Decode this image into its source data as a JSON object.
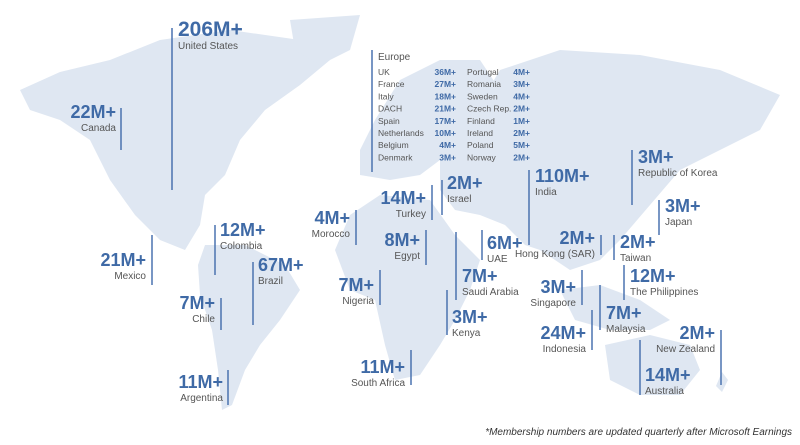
{
  "labels": [
    {
      "value": "206M+",
      "name": "United States"
    },
    {
      "value": "22M+",
      "name": "Canada"
    },
    {
      "value": "12M+",
      "name": "Colombia"
    },
    {
      "value": "21M+",
      "name": "Mexico"
    },
    {
      "value": "67M+",
      "name": "Brazil"
    },
    {
      "value": "7M+",
      "name": "Chile"
    },
    {
      "value": "11M+",
      "name": "Argentina"
    },
    {
      "value": "4M+",
      "name": "Morocco"
    },
    {
      "value": "7M+",
      "name": "Nigeria"
    },
    {
      "value": "14M+",
      "name": "Turkey"
    },
    {
      "value": "2M+",
      "name": "Israel"
    },
    {
      "value": "8M+",
      "name": "Egypt"
    },
    {
      "value": "11M+",
      "name": "South Africa"
    },
    {
      "value": "7M+",
      "name": "Saudi Arabia"
    },
    {
      "value": "3M+",
      "name": "Kenya"
    },
    {
      "value": "6M+",
      "name": "UAE"
    },
    {
      "value": "110M+",
      "name": "India"
    },
    {
      "value": "2M+",
      "name": "Hong Kong (SAR)"
    },
    {
      "value": "3M+",
      "name": "Singapore"
    },
    {
      "value": "24M+",
      "name": "Indonesia"
    },
    {
      "value": "7M+",
      "name": "Malaysia"
    },
    {
      "value": "2M+",
      "name": "Taiwan"
    },
    {
      "value": "12M+",
      "name": "The Philippines"
    },
    {
      "value": "3M+",
      "name": "Republic of Korea"
    },
    {
      "value": "3M+",
      "name": "Japan"
    },
    {
      "value": "2M+",
      "name": "New Zealand"
    },
    {
      "value": "14M+",
      "name": "Australia"
    }
  ],
  "europe": {
    "title": "Europe",
    "left": [
      [
        "UK",
        "36M+"
      ],
      [
        "France",
        "27M+"
      ],
      [
        "Italy",
        "18M+"
      ],
      [
        "DACH",
        "21M+"
      ],
      [
        "Spain",
        "17M+"
      ],
      [
        "Netherlands",
        "10M+"
      ],
      [
        "Belgium",
        "4M+"
      ],
      [
        "Denmark",
        "3M+"
      ]
    ],
    "right": [
      [
        "Portugal",
        "4M+"
      ],
      [
        "Romania",
        "3M+"
      ],
      [
        "Sweden",
        "4M+"
      ],
      [
        "Czech Rep.",
        "2M+"
      ],
      [
        "Finland",
        "1M+"
      ],
      [
        "Ireland",
        "2M+"
      ],
      [
        "Poland",
        "5M+"
      ],
      [
        "Norway",
        "2M+"
      ]
    ]
  },
  "footnote": "*Membership numbers are updated quarterly after Microsoft Earnings"
}
